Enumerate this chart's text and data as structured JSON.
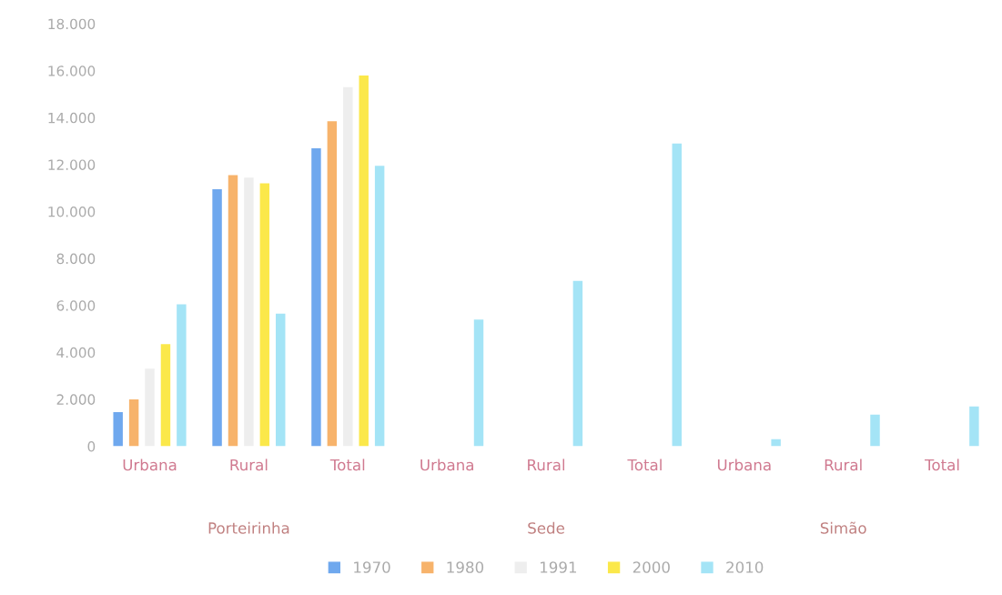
{
  "chart_data": {
    "type": "bar",
    "categories": [
      "Urbana",
      "Rural",
      "Total",
      "Urbana",
      "Rural",
      "Total",
      "Urbana",
      "Rural",
      "Total"
    ],
    "series": [
      {
        "name": "1970",
        "color": "#6fa8ee",
        "values": [
          1450,
          10950,
          12700,
          null,
          null,
          null,
          null,
          null,
          null
        ]
      },
      {
        "name": "1980",
        "color": "#f7b36b",
        "values": [
          2000,
          11550,
          13850,
          null,
          null,
          null,
          null,
          null,
          null
        ]
      },
      {
        "name": "1991",
        "color": "#eeeeee",
        "values": [
          3300,
          11450,
          15300,
          null,
          null,
          null,
          null,
          null,
          null
        ]
      },
      {
        "name": "2000",
        "color": "#fbe84a",
        "values": [
          4350,
          11200,
          15800,
          null,
          null,
          null,
          null,
          null,
          null
        ]
      },
      {
        "name": "2010",
        "color": "#a4e4f6",
        "values": [
          6050,
          5650,
          11950,
          5400,
          7050,
          12900,
          300,
          1350,
          1700
        ]
      }
    ],
    "annotations": [
      "Porteirinha",
      "Sede",
      "Simão"
    ],
    "ylim": [
      0,
      18000
    ],
    "yticks": [
      {
        "value": 0,
        "label": "0"
      },
      {
        "value": 2000,
        "label": "2.000"
      },
      {
        "value": 4000,
        "label": "4.000"
      },
      {
        "value": 6000,
        "label": "6.000"
      },
      {
        "value": 8000,
        "label": "8.000"
      },
      {
        "value": 10000,
        "label": "10.000"
      },
      {
        "value": 12000,
        "label": "12.000"
      },
      {
        "value": 14000,
        "label": "14.000"
      },
      {
        "value": 16000,
        "label": "16.000"
      },
      {
        "value": 18000,
        "label": "18.000"
      }
    ],
    "legend": "bottom",
    "grid": false
  }
}
